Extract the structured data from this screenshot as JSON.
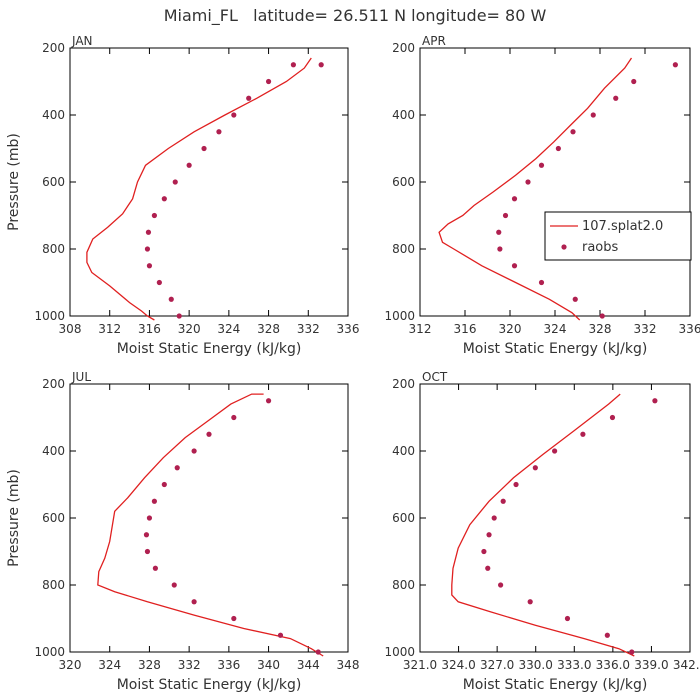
{
  "title": "Miami_FL   latitude= 26.511 N longitude= 80 W",
  "colors": {
    "model": "#e02020",
    "obs": "#b02050",
    "axis": "#000000",
    "text": "#333333"
  },
  "legend": {
    "model_label": "107.splat2.0",
    "obs_label": "raobs",
    "panel": "APR",
    "position": "center-right"
  },
  "chart_data": [
    {
      "type": "line",
      "panel_label": "JAN",
      "xlabel": "Moist Static Energy (kJ/kg)",
      "ylabel": "Pressure (mb)",
      "xlim": [
        308,
        336
      ],
      "ylim": [
        1000,
        200
      ],
      "xticks": [
        308,
        312,
        316,
        320,
        324,
        328,
        332,
        336
      ],
      "xtick_labels": [
        "308",
        "312",
        "316",
        "320",
        "324",
        "328",
        "332",
        "336"
      ],
      "yticks": [
        200,
        400,
        600,
        800,
        1000
      ],
      "ytick_labels": [
        "200",
        "400",
        "600",
        "800",
        "1000"
      ],
      "series": [
        {
          "name": "107.splat2.0",
          "kind": "line",
          "x": [
            316.5,
            315.8,
            315.2,
            314.0,
            312.0,
            310.2,
            309.7,
            309.7,
            310.3,
            311.8,
            313.3,
            314.3,
            314.8,
            315.6,
            317.9,
            320.5,
            323.6,
            326.8,
            329.8,
            331.6,
            332.3
          ],
          "y": [
            1012,
            1000,
            985,
            960,
            910,
            870,
            840,
            810,
            770,
            735,
            695,
            650,
            600,
            550,
            500,
            450,
            400,
            350,
            300,
            260,
            230
          ]
        },
        {
          "name": "raobs",
          "kind": "points",
          "x": [
            319.0,
            318.2,
            317.0,
            316.0,
            315.8,
            315.9,
            316.5,
            317.5,
            318.6,
            320.0,
            321.5,
            323.0,
            324.5,
            326.0,
            328.0,
            330.5,
            333.3
          ],
          "y": [
            1000,
            950,
            900,
            850,
            800,
            750,
            700,
            650,
            600,
            550,
            500,
            450,
            400,
            350,
            300,
            250,
            250
          ]
        }
      ]
    },
    {
      "type": "line",
      "panel_label": "APR",
      "xlabel": "Moist Static Energy (kJ/kg)",
      "ylabel": "",
      "xlim": [
        312,
        336
      ],
      "ylim": [
        1000,
        200
      ],
      "xticks": [
        312,
        316,
        320,
        324,
        328,
        332,
        336
      ],
      "xtick_labels": [
        "312",
        "316",
        "320",
        "324",
        "328",
        "332",
        "336"
      ],
      "yticks": [
        200,
        400,
        600,
        800,
        1000
      ],
      "ytick_labels": [
        "200",
        "400",
        "600",
        "800",
        "1000"
      ],
      "series": [
        {
          "name": "107.splat2.0",
          "kind": "line",
          "x": [
            326.2,
            325.5,
            323.5,
            320.5,
            317.5,
            315.0,
            314.0,
            313.7,
            314.5,
            315.8,
            316.8,
            318.5,
            320.5,
            322.3,
            323.9,
            325.4,
            326.9,
            328.4,
            330.2,
            330.8
          ],
          "y": [
            1012,
            990,
            950,
            900,
            850,
            800,
            780,
            750,
            725,
            700,
            670,
            630,
            580,
            530,
            480,
            430,
            380,
            320,
            260,
            230
          ]
        },
        {
          "name": "raobs",
          "kind": "points",
          "x": [
            328.2,
            325.8,
            322.8,
            320.4,
            319.1,
            319.0,
            319.6,
            320.4,
            321.6,
            322.8,
            324.3,
            325.6,
            327.4,
            329.4,
            331.0,
            334.7
          ],
          "y": [
            1000,
            950,
            900,
            850,
            800,
            750,
            700,
            650,
            600,
            550,
            500,
            450,
            400,
            350,
            300,
            250
          ]
        }
      ]
    },
    {
      "type": "line",
      "panel_label": "JUL",
      "xlabel": "Moist Static Energy (kJ/kg)",
      "ylabel": "Pressure (mb)",
      "xlim": [
        320,
        348
      ],
      "ylim": [
        1000,
        200
      ],
      "xticks": [
        320,
        324,
        328,
        332,
        336,
        340,
        344,
        348
      ],
      "xtick_labels": [
        "320",
        "324",
        "328",
        "332",
        "336",
        "340",
        "344",
        "348"
      ],
      "yticks": [
        200,
        400,
        600,
        800,
        1000
      ],
      "ytick_labels": [
        "200",
        "400",
        "600",
        "800",
        "1000"
      ],
      "series": [
        {
          "name": "107.splat2.0",
          "kind": "line",
          "x": [
            345.5,
            344.3,
            342.2,
            337.5,
            332.5,
            327.8,
            324.5,
            322.8,
            322.9,
            323.5,
            324.0,
            324.5,
            325.8,
            327.5,
            329.4,
            331.6,
            333.9,
            336.2,
            338.3,
            339.5
          ],
          "y": [
            1012,
            990,
            960,
            930,
            890,
            850,
            820,
            800,
            760,
            720,
            670,
            580,
            540,
            480,
            420,
            360,
            310,
            260,
            230,
            230
          ]
        },
        {
          "name": "raobs",
          "kind": "points",
          "x": [
            345.0,
            341.2,
            336.5,
            332.5,
            330.5,
            328.6,
            327.8,
            327.7,
            328.0,
            328.5,
            329.5,
            330.8,
            332.5,
            334.0,
            336.5,
            340.0
          ],
          "y": [
            1000,
            950,
            900,
            850,
            800,
            750,
            700,
            650,
            600,
            550,
            500,
            450,
            400,
            350,
            300,
            250
          ]
        }
      ]
    },
    {
      "type": "line",
      "panel_label": "OCT",
      "xlabel": "Moist Static Energy (kJ/kg)",
      "ylabel": "",
      "xlim": [
        321.03,
        342.03
      ],
      "ylim": [
        1000,
        200
      ],
      "xticks": [
        321.03,
        324.03,
        327.03,
        330.03,
        333.03,
        336.03,
        339.03,
        342.03
      ],
      "xtick_labels": [
        "321.0",
        "324.0",
        "327.0",
        "330.0",
        "333.0",
        "336.0",
        "339.0",
        "342.0"
      ],
      "yticks": [
        200,
        400,
        600,
        800,
        1000
      ],
      "ytick_labels": [
        "200",
        "400",
        "600",
        "800",
        "1000"
      ],
      "series": [
        {
          "name": "107.splat2.0",
          "kind": "line",
          "x": [
            337.7,
            336.5,
            333.8,
            330.0,
            326.5,
            324.0,
            323.5,
            323.5,
            323.6,
            324.0,
            324.9,
            326.4,
            328.3,
            330.6,
            333.0,
            335.7,
            336.6
          ],
          "y": [
            1012,
            990,
            960,
            920,
            880,
            850,
            830,
            800,
            750,
            690,
            620,
            550,
            480,
            410,
            340,
            260,
            230
          ]
        },
        {
          "name": "raobs",
          "kind": "points",
          "x": [
            337.5,
            335.6,
            332.5,
            329.6,
            327.3,
            326.3,
            326.0,
            326.4,
            326.8,
            327.5,
            328.5,
            330.0,
            331.5,
            333.7,
            336.0,
            339.3
          ],
          "y": [
            1000,
            950,
            900,
            850,
            800,
            750,
            700,
            650,
            600,
            550,
            500,
            450,
            400,
            350,
            300,
            250
          ]
        }
      ]
    }
  ]
}
